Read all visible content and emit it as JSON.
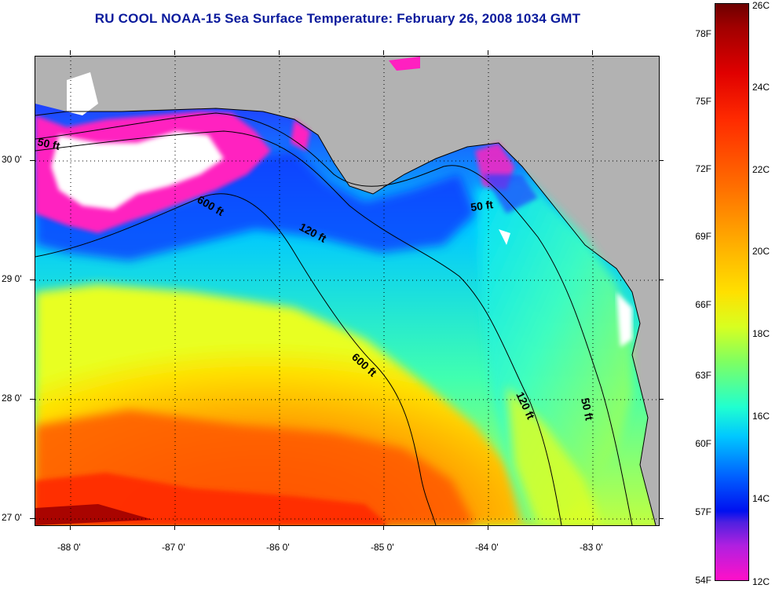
{
  "title": "RU COOL  NOAA-15  Sea Surface Temperature:  February 26, 2008 1034 GMT",
  "map": {
    "latitude_labels": [
      "30 0'",
      "29 0'",
      "28 0'",
      "27 0'"
    ],
    "longitude_labels": [
      "-88 0'",
      "-87 0'",
      "-86 0'",
      "-85 0'",
      "-84 0'",
      "-83 0'"
    ],
    "depth_contour_labels": [
      "50 ft",
      "600 ft",
      "120 ft",
      "50 ft",
      "600 ft",
      "120 ft",
      "50 ft"
    ],
    "colors": {
      "land": "#b2b2b2",
      "cloud": "#ffffff",
      "border": "#000000"
    }
  },
  "colorbar": {
    "fahrenheit_labels": [
      "78F",
      "75F",
      "72F",
      "69F",
      "66F",
      "63F",
      "60F",
      "57F",
      "54F"
    ],
    "celsius_labels": [
      "26C",
      "24C",
      "22C",
      "20C",
      "18C",
      "16C",
      "14C",
      "12C"
    ],
    "range_f": [
      54,
      79
    ],
    "range_c": [
      12,
      26
    ]
  }
}
